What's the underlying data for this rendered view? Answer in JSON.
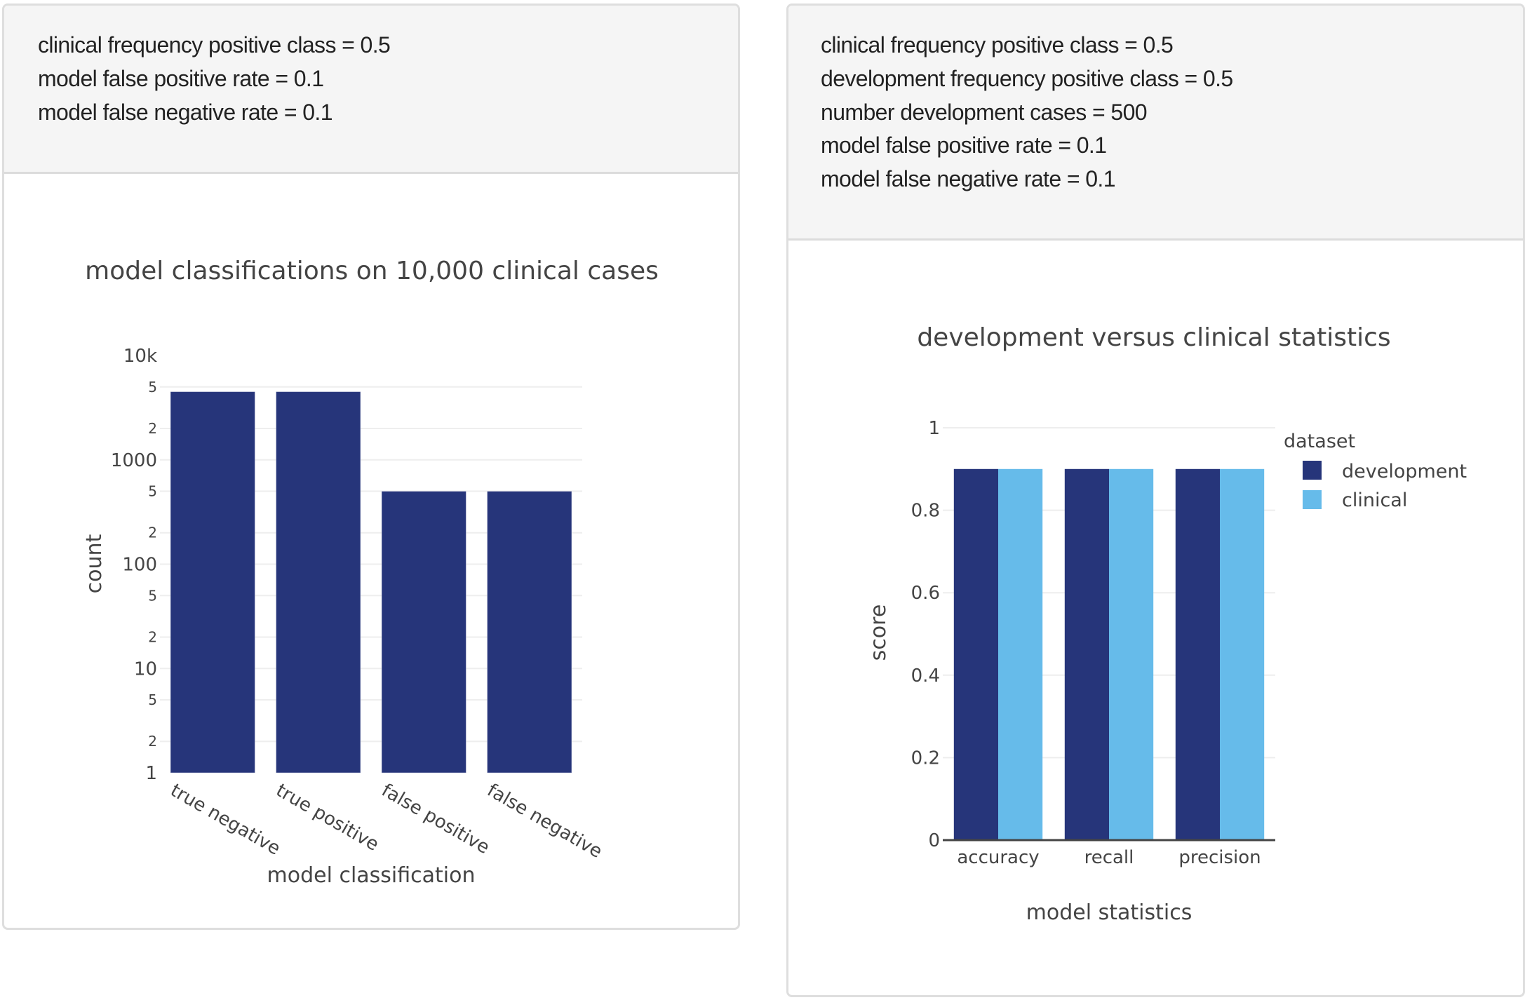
{
  "left_panel": {
    "parameters": [
      "clinical frequency positive class = 0.5",
      "model false positive rate = 0.1",
      "model false negative rate = 0.1"
    ]
  },
  "right_panel": {
    "parameters": [
      "clinical frequency positive class = 0.5",
      "development frequency positive class = 0.5",
      "number development cases = 500",
      "model false positive rate = 0.1",
      "model false negative rate = 0.1"
    ]
  },
  "colors": {
    "development": "#26357a",
    "clinical": "#66bbea",
    "grid": "#eeeeee",
    "axis": "#444444"
  },
  "chart_data": [
    {
      "type": "bar",
      "title": "model classifications on 10,000 clinical cases",
      "xlabel": "model classification",
      "ylabel": "count",
      "yscale": "log",
      "ylim": [
        1,
        10000
      ],
      "categories": [
        "true negative",
        "true positive",
        "false positive",
        "false negative"
      ],
      "values": [
        4500,
        4500,
        500,
        500
      ],
      "y_ticks": [
        {
          "value": 1,
          "label": "1",
          "major": true
        },
        {
          "value": 2,
          "label": "2",
          "major": false
        },
        {
          "value": 5,
          "label": "5",
          "major": false
        },
        {
          "value": 10,
          "label": "10",
          "major": true
        },
        {
          "value": 20,
          "label": "2",
          "major": false
        },
        {
          "value": 50,
          "label": "5",
          "major": false
        },
        {
          "value": 100,
          "label": "100",
          "major": true
        },
        {
          "value": 200,
          "label": "2",
          "major": false
        },
        {
          "value": 500,
          "label": "5",
          "major": false
        },
        {
          "value": 1000,
          "label": "1000",
          "major": true
        },
        {
          "value": 2000,
          "label": "2",
          "major": false
        },
        {
          "value": 5000,
          "label": "5",
          "major": false
        },
        {
          "value": 10000,
          "label": "10k",
          "major": true
        }
      ],
      "x_tick_rotation": "30 degrees",
      "grid": true,
      "legend": "none"
    },
    {
      "type": "bar",
      "title": "development versus clinical statistics",
      "xlabel": "model statistics",
      "ylabel": "score",
      "ylim": [
        0,
        1
      ],
      "categories": [
        "accuracy",
        "recall",
        "precision"
      ],
      "series": [
        {
          "name": "development",
          "values": [
            0.9,
            0.9,
            0.9
          ]
        },
        {
          "name": "clinical",
          "values": [
            0.9,
            0.9,
            0.9
          ]
        }
      ],
      "y_ticks": [
        {
          "value": 0,
          "label": "0"
        },
        {
          "value": 0.2,
          "label": "0.2"
        },
        {
          "value": 0.4,
          "label": "0.4"
        },
        {
          "value": 0.6,
          "label": "0.6"
        },
        {
          "value": 0.8,
          "label": "0.8"
        },
        {
          "value": 1,
          "label": "1"
        }
      ],
      "grid": true,
      "legend_title": "dataset",
      "legend": "right",
      "barmode": "group"
    }
  ]
}
